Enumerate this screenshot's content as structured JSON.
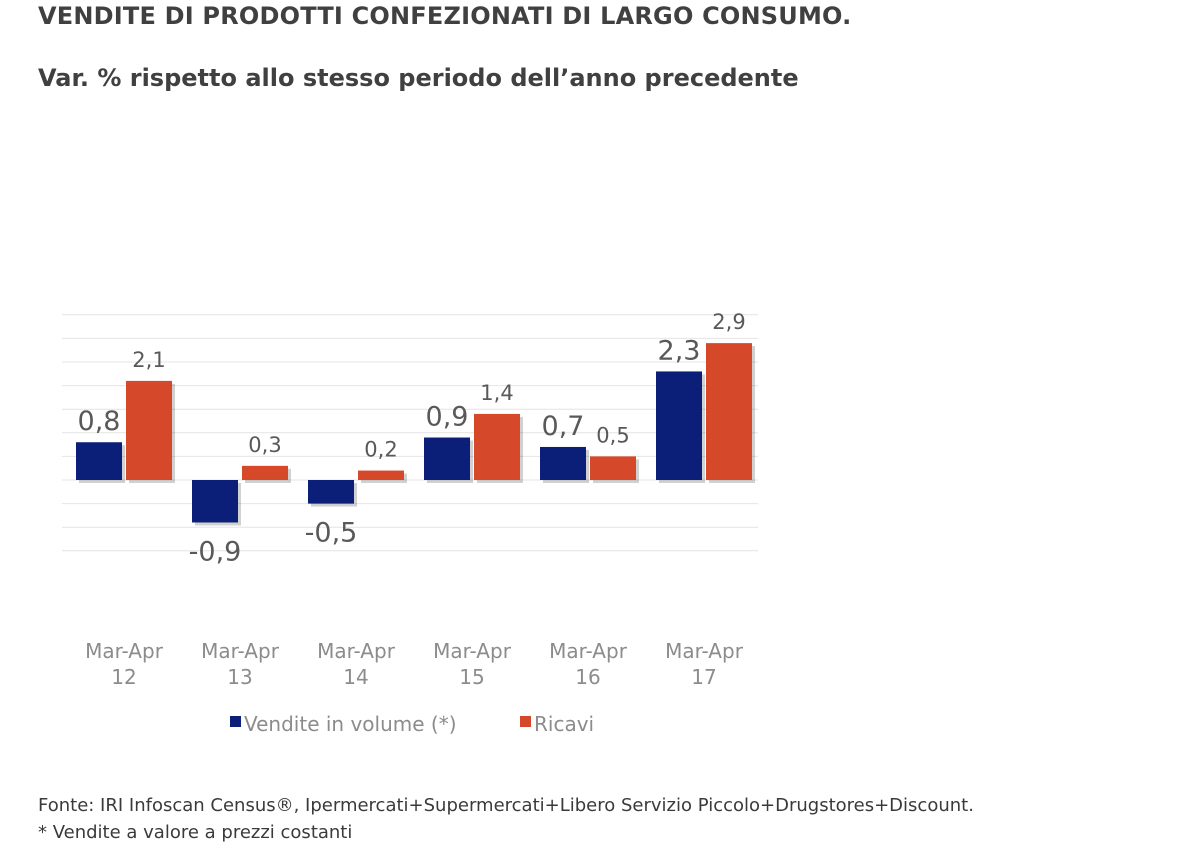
{
  "header": {
    "title": "VENDITE DI PRODOTTI CONFEZIONATI DI LARGO CONSUMO.",
    "subtitle": "Var. % rispetto allo stesso periodo dell’anno precedente"
  },
  "chart_data": {
    "type": "bar",
    "title": "",
    "xlabel": "",
    "ylabel": "",
    "categories": [
      [
        "Mar-Apr",
        "12"
      ],
      [
        "Mar-Apr",
        "13"
      ],
      [
        "Mar-Apr",
        "14"
      ],
      [
        "Mar-Apr",
        "15"
      ],
      [
        "Mar-Apr",
        "16"
      ],
      [
        "Mar-Apr",
        "17"
      ]
    ],
    "series": [
      {
        "name": "Vendite in volume (*)",
        "color": "#0b1f78",
        "values": [
          0.8,
          -0.9,
          -0.5,
          0.9,
          0.7,
          2.3
        ],
        "labels": [
          "0,8",
          "-0,9",
          "-0,5",
          "0,9",
          "0,7",
          "2,3"
        ]
      },
      {
        "name": "Ricavi",
        "color": "#d5492a",
        "values": [
          2.1,
          0.3,
          0.2,
          1.4,
          0.5,
          2.9
        ],
        "labels": [
          "2,1",
          "0,3",
          "0,2",
          "1,4",
          "0,5",
          "2,9"
        ]
      }
    ],
    "ylim": [
      -1.5,
      3.5
    ],
    "gridlines": true,
    "legend_position": "bottom"
  },
  "footer": {
    "source": "Fonte: IRI Infoscan Census®, Ipermercati+Supermercati+Libero Servizio Piccolo+Drugstores+Discount.",
    "note": "* Vendite a valore a prezzi costanti"
  }
}
